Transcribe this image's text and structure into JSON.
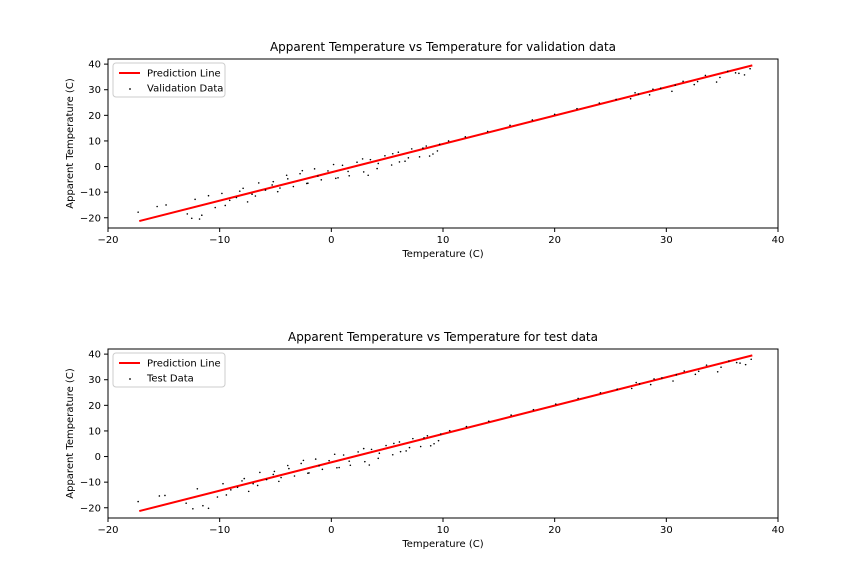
{
  "chart_data": [
    {
      "type": "scatter",
      "title": "Apparent Temperature vs Temperature for validation data",
      "xlabel": "Temperature (C)",
      "ylabel": "Apparent Temperature (C)",
      "xlim": [
        -20,
        40
      ],
      "ylim": [
        -24,
        42
      ],
      "xticks": [
        -20,
        -10,
        0,
        10,
        20,
        30,
        40
      ],
      "yticks": [
        -20,
        -10,
        0,
        10,
        20,
        30,
        40
      ],
      "grid": false,
      "legend_position": "top-left",
      "series": [
        {
          "name": "Prediction Line",
          "kind": "line",
          "color": "#ff0000",
          "x": [
            -17.2,
            37.7
          ],
          "y": [
            -21.3,
            39.5
          ]
        },
        {
          "name": "Validation Data",
          "kind": "scatter",
          "color": "#000000",
          "x": [
            -17.3,
            -15.6,
            -14.8,
            -12.9,
            -12.5,
            -12.2,
            -11.6,
            -11.0,
            -10.4,
            -9.8,
            -9.1,
            -8.5,
            -7.9,
            -7.1,
            -6.5,
            -5.9,
            -5.2,
            -4.6,
            -4.0,
            -3.4,
            -2.8,
            -2.1,
            -1.5,
            -0.9,
            -0.3,
            0.4,
            1.0,
            1.6,
            2.3,
            2.9,
            3.5,
            4.1,
            4.8,
            5.4,
            6.0,
            6.6,
            7.2,
            7.9,
            8.5,
            9.1,
            9.7,
            -11.8,
            -9.5,
            -8.2,
            -6.8,
            -5.3,
            -3.9,
            -2.6,
            -1.2,
            0.2,
            1.5,
            2.8,
            4.2,
            5.5,
            6.9,
            8.2,
            9.5,
            -7.5,
            -4.8,
            -2.2,
            0.6,
            3.3,
            6.1,
            8.8,
            10.5,
            12.0,
            14.0,
            16.0,
            18.0,
            20.0,
            22.0,
            24.0,
            25.5,
            26.8,
            27.5,
            28.5,
            29.5,
            30.5,
            31.5,
            32.5,
            33.5,
            34.5,
            35.5,
            36.5,
            37.5,
            37.0,
            27.2,
            28.8,
            30.8,
            32.8,
            34.8,
            36.2
          ],
          "y": [
            -17.8,
            -15.6,
            -15.0,
            -18.5,
            -20.2,
            -12.8,
            -19.0,
            -11.4,
            -16.0,
            -10.5,
            -13.2,
            -12.1,
            -8.5,
            -10.8,
            -6.4,
            -9.2,
            -5.9,
            -8.4,
            -3.4,
            -7.8,
            -2.8,
            -6.5,
            -0.9,
            -5.2,
            -1.7,
            -4.6,
            0.5,
            -3.6,
            1.7,
            -2.1,
            2.7,
            -0.8,
            4.2,
            0.6,
            5.6,
            2.1,
            6.9,
            3.8,
            8.0,
            4.9,
            8.7,
            -20.5,
            -15.2,
            -9.6,
            -11.5,
            -7.2,
            -4.8,
            -1.6,
            -3.7,
            0.8,
            -1.9,
            3.0,
            1.2,
            5.0,
            3.4,
            7.2,
            6.1,
            -13.8,
            -9.8,
            -6.6,
            -4.4,
            -3.4,
            1.8,
            4.1,
            10.0,
            11.6,
            13.7,
            16.1,
            18.2,
            20.4,
            22.6,
            24.8,
            26.2,
            26.5,
            28.3,
            28.0,
            30.6,
            29.4,
            33.3,
            32.0,
            35.6,
            33.0,
            37.2,
            36.4,
            38.2,
            35.8,
            28.8,
            30.2,
            31.8,
            33.2,
            34.8,
            36.6
          ]
        }
      ]
    },
    {
      "type": "scatter",
      "title": "Apparent Temperature vs Temperature for test data",
      "xlabel": "Temperature (C)",
      "ylabel": "Apparent Temperature (C)",
      "xlim": [
        -20,
        40
      ],
      "ylim": [
        -24,
        42
      ],
      "xticks": [
        -20,
        -10,
        0,
        10,
        20,
        30,
        40
      ],
      "yticks": [
        -20,
        -10,
        0,
        10,
        20,
        30,
        40
      ],
      "grid": false,
      "legend_position": "top-left",
      "series": [
        {
          "name": "Prediction Line",
          "kind": "line",
          "color": "#ff0000",
          "x": [
            -17.2,
            37.7
          ],
          "y": [
            -21.3,
            39.5
          ]
        },
        {
          "name": "Test Data",
          "kind": "scatter",
          "color": "#000000",
          "x": [
            -17.3,
            -15.4,
            -14.9,
            -13.0,
            -12.4,
            -12.0,
            -11.5,
            -10.2,
            -9.7,
            -9.0,
            -8.4,
            -7.8,
            -7.0,
            -6.4,
            -5.8,
            -5.1,
            -4.5,
            -3.9,
            -3.3,
            -2.7,
            -2.0,
            -1.4,
            -0.8,
            -0.2,
            0.5,
            1.1,
            1.7,
            2.4,
            3.0,
            3.6,
            4.2,
            4.9,
            5.5,
            6.1,
            6.7,
            7.3,
            8.0,
            8.6,
            9.2,
            9.8,
            -11.0,
            -9.4,
            -8.0,
            -6.6,
            -5.2,
            -3.8,
            -2.5,
            -1.1,
            0.3,
            1.6,
            2.9,
            4.3,
            5.6,
            7.0,
            8.3,
            9.6,
            -7.4,
            -4.7,
            -2.1,
            0.7,
            3.4,
            6.2,
            8.9,
            10.6,
            12.1,
            14.1,
            16.1,
            18.1,
            20.1,
            22.1,
            24.1,
            25.6,
            26.9,
            27.6,
            28.6,
            29.6,
            30.6,
            31.6,
            32.6,
            33.6,
            34.6,
            35.6,
            36.6,
            37.6,
            37.1,
            27.3,
            28.9,
            30.9,
            32.9,
            34.9,
            36.3
          ],
          "y": [
            -17.6,
            -15.4,
            -15.2,
            -18.2,
            -20.4,
            -12.6,
            -19.2,
            -15.8,
            -10.6,
            -13.0,
            -12.0,
            -8.6,
            -10.6,
            -6.2,
            -9.0,
            -5.8,
            -8.2,
            -3.5,
            -7.6,
            -2.7,
            -6.4,
            -1.0,
            -5.0,
            -1.6,
            -4.4,
            0.6,
            -3.4,
            1.8,
            -2.0,
            2.8,
            -0.7,
            4.3,
            0.7,
            5.7,
            2.2,
            7.0,
            3.9,
            8.1,
            5.0,
            8.8,
            -20.2,
            -15.0,
            -9.5,
            -11.3,
            -7.0,
            -4.7,
            -1.5,
            -3.6,
            0.9,
            -1.8,
            3.1,
            1.3,
            5.1,
            3.5,
            7.3,
            6.2,
            -13.6,
            -9.7,
            -6.5,
            -4.3,
            -3.3,
            1.9,
            4.2,
            10.1,
            11.7,
            13.8,
            16.2,
            18.3,
            20.5,
            22.7,
            24.9,
            26.3,
            26.6,
            28.4,
            28.1,
            30.7,
            29.5,
            33.4,
            32.1,
            35.7,
            33.1,
            37.3,
            36.5,
            38.0,
            35.9,
            28.9,
            30.3,
            31.9,
            33.3,
            34.9,
            36.7
          ]
        }
      ]
    }
  ]
}
